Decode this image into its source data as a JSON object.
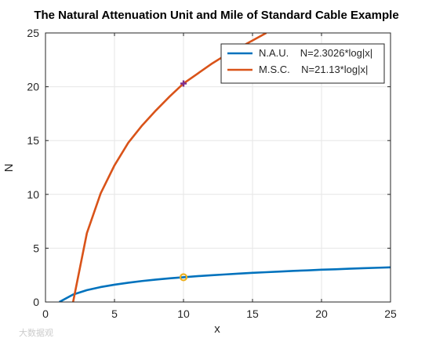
{
  "chart_data": {
    "type": "line",
    "title": "The Natural Attenuation Unit and Mile of Standard Cable Example",
    "xlabel": "x",
    "ylabel": "N",
    "xlim": [
      0,
      25
    ],
    "ylim": [
      0,
      25
    ],
    "xticks": [
      "0",
      "5",
      "10",
      "15",
      "20",
      "25"
    ],
    "yticks": [
      "0",
      "5",
      "10",
      "15",
      "20",
      "25"
    ],
    "grid": true,
    "legend_position": "top-right",
    "series": [
      {
        "name": "N.A.U.    N=2.3026*log|x|",
        "color": "#0072bd",
        "x": [
          1,
          2,
          3,
          4,
          5,
          6,
          7,
          8,
          9,
          10,
          11,
          12,
          13,
          14,
          15,
          16,
          17,
          18,
          19,
          20,
          21,
          22,
          23,
          24,
          25
        ],
        "y": [
          0,
          0.69,
          1.1,
          1.39,
          1.61,
          1.79,
          1.95,
          2.08,
          2.2,
          2.3,
          2.4,
          2.48,
          2.56,
          2.64,
          2.71,
          2.77,
          2.83,
          2.89,
          2.94,
          3.0,
          3.04,
          3.09,
          3.14,
          3.18,
          3.22
        ]
      },
      {
        "name": "M.S.C.    N=21.13*log|x|",
        "color": "#d95319",
        "x": [
          2,
          3,
          4,
          5,
          6,
          7,
          8,
          9,
          10,
          11,
          12,
          13,
          14,
          15,
          16
        ],
        "y": [
          0,
          6.4,
          10.1,
          12.7,
          14.8,
          16.4,
          17.8,
          19.1,
          20.3,
          21.2,
          22.1,
          22.9,
          23.6,
          24.3,
          25.0
        ]
      }
    ],
    "markers": [
      {
        "name": "NAU point",
        "x": 10,
        "y": 2.3,
        "shape": "circle",
        "color": "#edb120"
      },
      {
        "name": "MSC point",
        "x": 10,
        "y": 20.3,
        "shape": "plus",
        "color": "#7e2f8e"
      }
    ]
  },
  "watermark": "大数据观"
}
